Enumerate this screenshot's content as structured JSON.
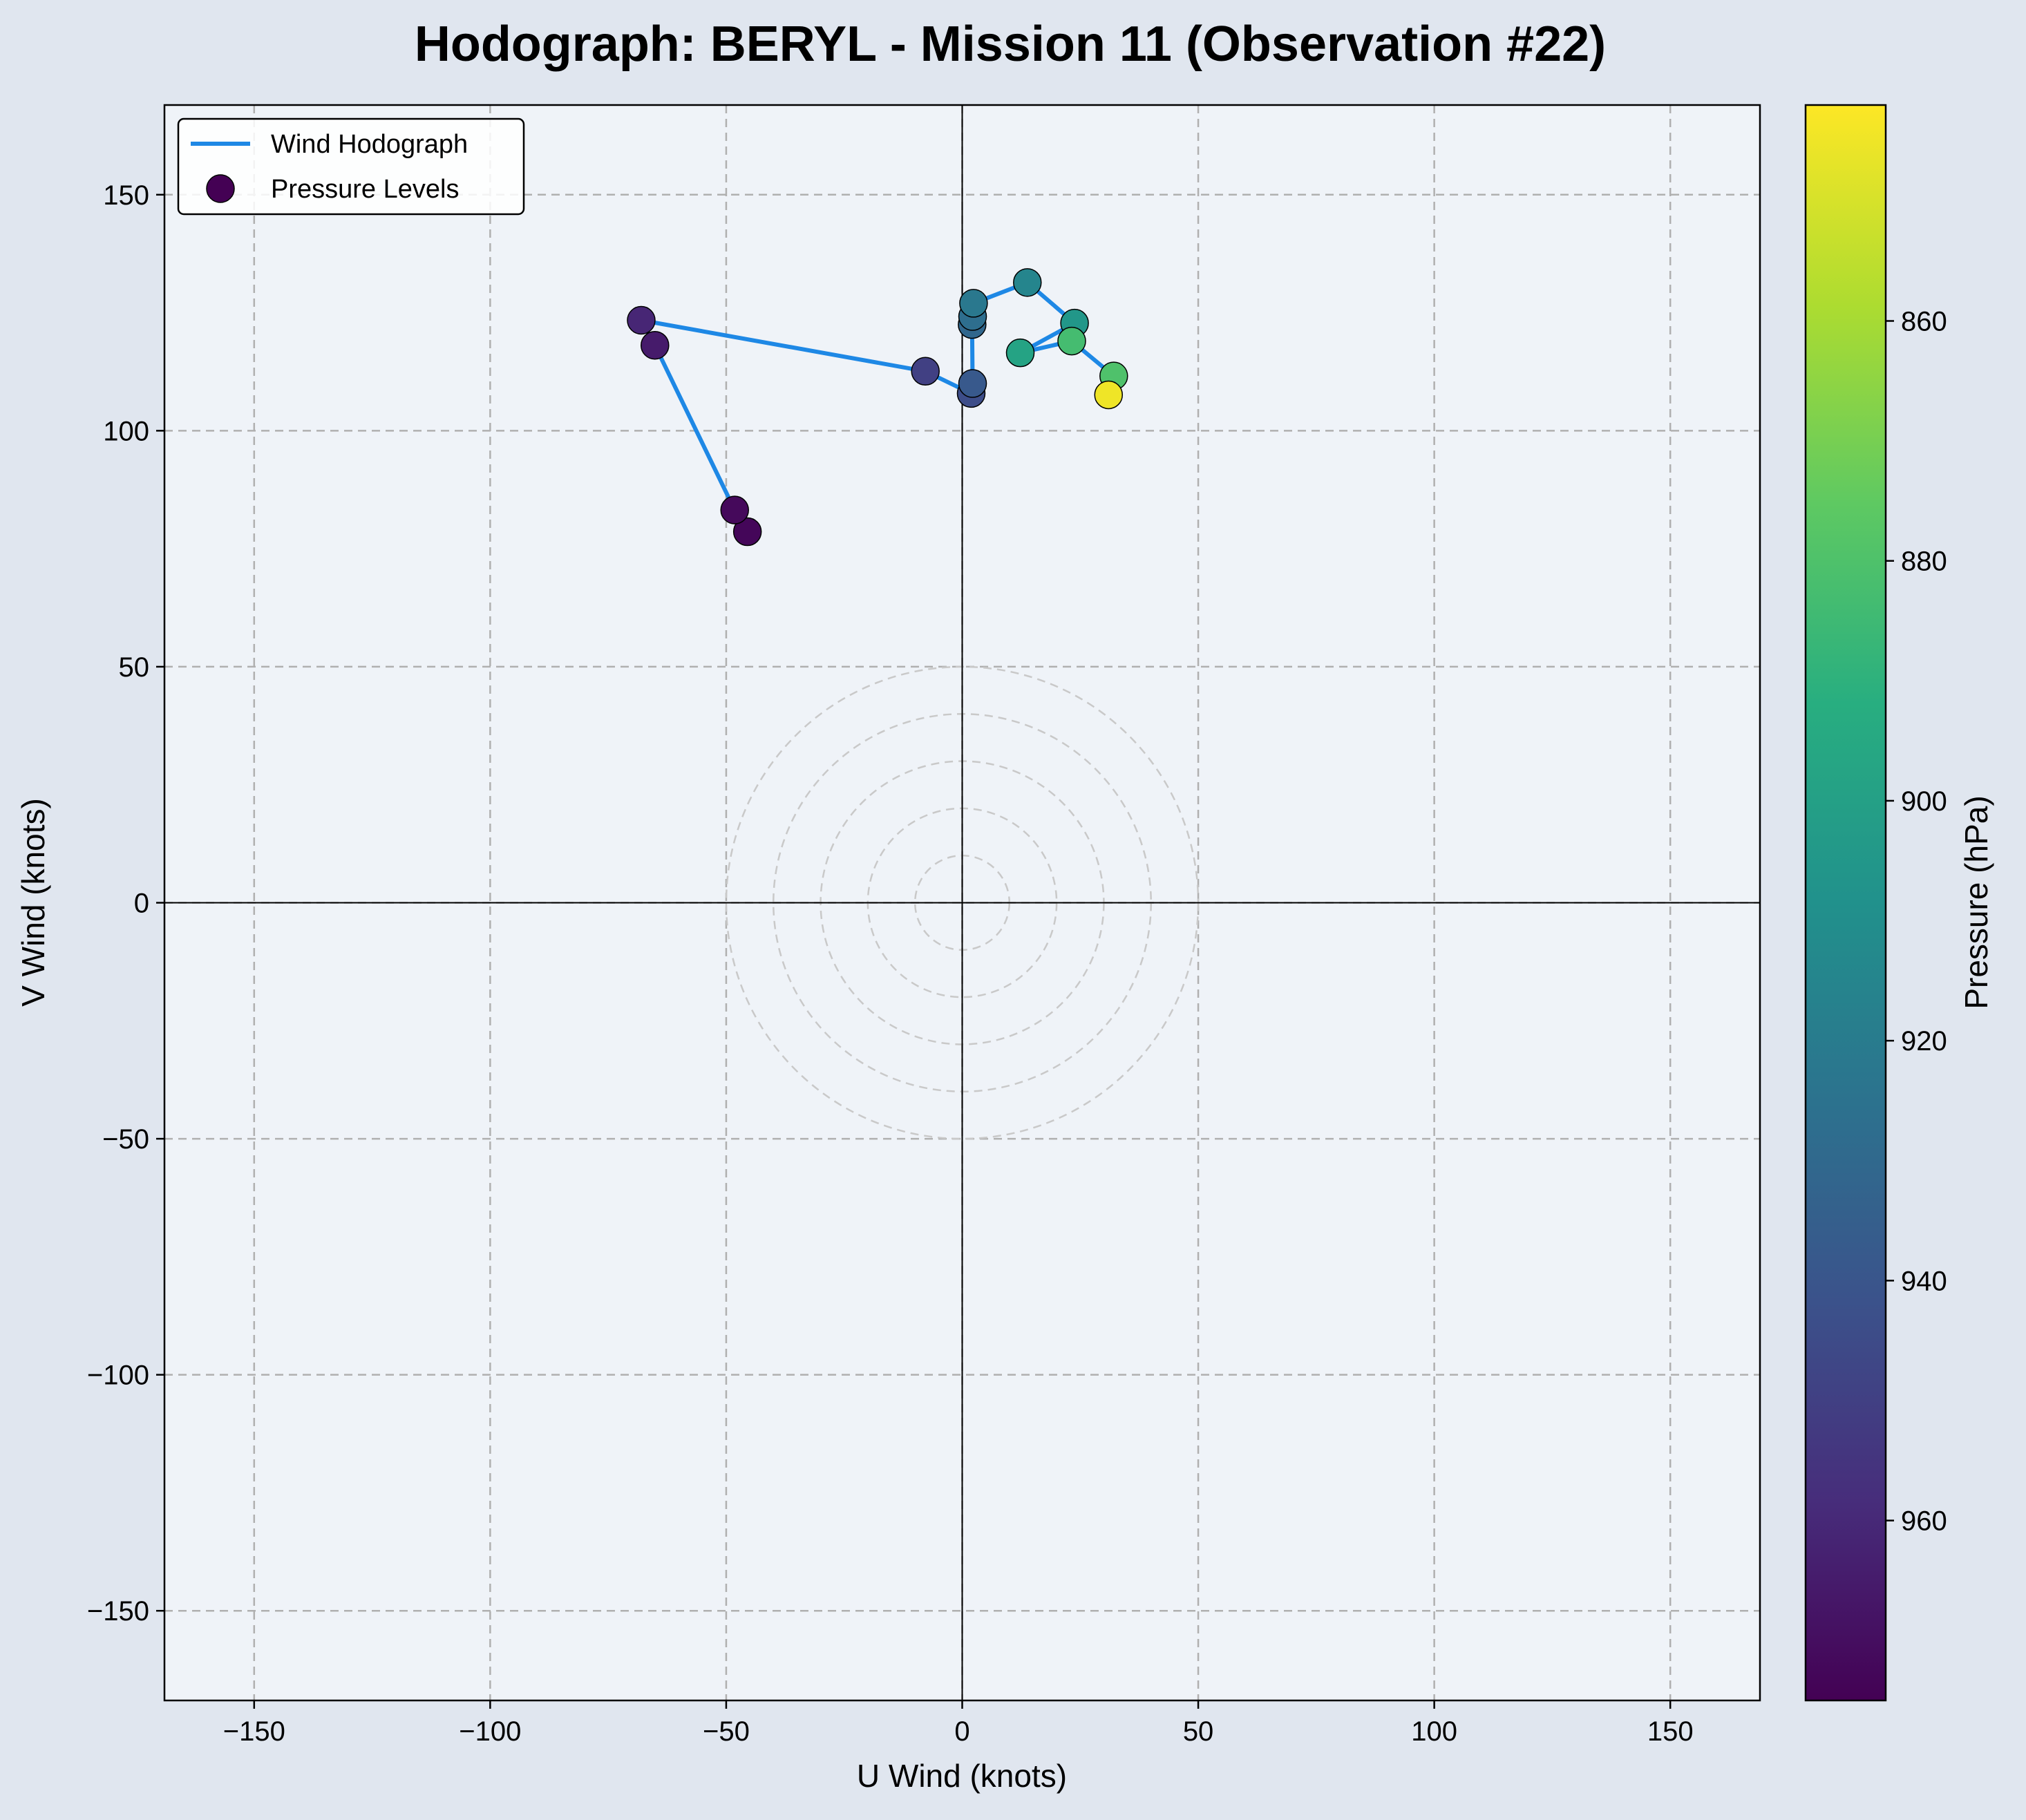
{
  "chart_data": {
    "type": "scatter",
    "title": "Hodograph: BERYL - Mission 11 (Observation #22)",
    "xlabel": "U Wind (knots)",
    "ylabel": "V Wind (knots)",
    "xlim": [
      -169,
      169
    ],
    "ylim": [
      -169,
      169
    ],
    "x_ticks": [
      -150,
      -100,
      -50,
      0,
      50,
      100,
      150
    ],
    "x_tick_labels": [
      "−150",
      "−100",
      "−50",
      "0",
      "50",
      "100",
      "150"
    ],
    "y_ticks": [
      150,
      100,
      50,
      0,
      -50,
      -100,
      -150
    ],
    "y_tick_labels": [
      "150",
      "100",
      "50",
      "0",
      "−50",
      "−100",
      "−150"
    ],
    "grid": true,
    "reference_rings_knots": [
      10,
      20,
      30,
      40,
      50
    ],
    "legend_position": "top-left",
    "series": [
      {
        "name": "Wind Hodograph",
        "kind": "line",
        "color": "#1e88e5",
        "u": [
          -45.5,
          -48.2,
          -65.1,
          -68.0,
          -7.8,
          1.9,
          2.2,
          2.1,
          2.2,
          2.4,
          13.8,
          23.8,
          12.3,
          23.2,
          32.1,
          31.0
        ],
        "v": [
          78.6,
          83.2,
          118.1,
          123.4,
          112.6,
          107.9,
          110.0,
          122.5,
          124.2,
          127.0,
          131.4,
          122.8,
          116.5,
          119.0,
          111.6,
          107.6
        ]
      },
      {
        "name": "Pressure Levels",
        "kind": "scatter",
        "u": [
          -45.5,
          -48.2,
          -65.1,
          -68.0,
          -7.8,
          1.9,
          2.2,
          2.1,
          2.2,
          2.4,
          13.8,
          23.8,
          12.3,
          23.2,
          32.1,
          31.0
        ],
        "v": [
          78.6,
          83.2,
          118.1,
          123.4,
          112.6,
          107.9,
          110.0,
          122.5,
          124.2,
          127.0,
          131.4,
          122.8,
          116.5,
          119.0,
          111.6,
          107.6
        ],
        "pressure_hPa": [
          973,
          972,
          965,
          961,
          950,
          944,
          938,
          931,
          927,
          922,
          915,
          905,
          898,
          883,
          880,
          845
        ]
      }
    ],
    "colorbar": {
      "label": "Pressure (hPa)",
      "colormap": "viridis",
      "range": [
        975,
        842
      ],
      "ticks": [
        860,
        880,
        900,
        920,
        940,
        960
      ],
      "tick_labels": [
        "860",
        "880",
        "900",
        "920",
        "940",
        "960"
      ]
    },
    "legend": [
      "Wind Hodograph",
      "Pressure Levels"
    ]
  }
}
